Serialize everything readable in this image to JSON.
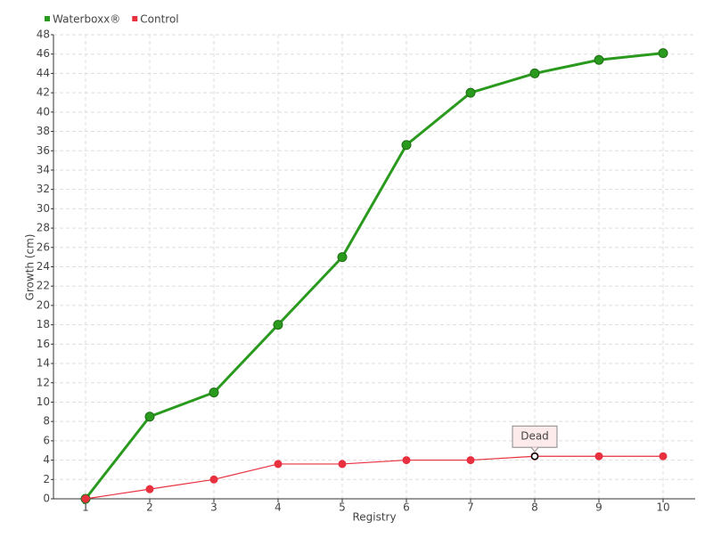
{
  "chart_data": {
    "type": "line",
    "x_label": "Registry",
    "y_label": "Growth (cm)",
    "categories": [
      "1",
      "2",
      "3",
      "4",
      "5",
      "6",
      "7",
      "8",
      "9",
      "10"
    ],
    "series": [
      {
        "name": "Waterboxx®",
        "color": "#2a9a1e",
        "values": [
          0,
          8.5,
          11,
          18,
          25,
          36.6,
          42,
          44,
          45.4,
          46.1
        ]
      },
      {
        "name": "Control",
        "color": "#e8303e",
        "values": [
          0,
          1,
          2,
          3.6,
          3.6,
          4,
          4,
          4.4,
          4.4,
          4.4
        ]
      }
    ],
    "ylim": [
      0,
      48
    ],
    "yticks": [
      0,
      2,
      4,
      6,
      8,
      10,
      12,
      14,
      16,
      18,
      20,
      22,
      24,
      26,
      28,
      30,
      32,
      34,
      36,
      38,
      40,
      42,
      44,
      46,
      48
    ],
    "grid": true,
    "legend": "top-left",
    "annotation": {
      "text": "Dead",
      "series": "Control",
      "x": "8"
    }
  }
}
